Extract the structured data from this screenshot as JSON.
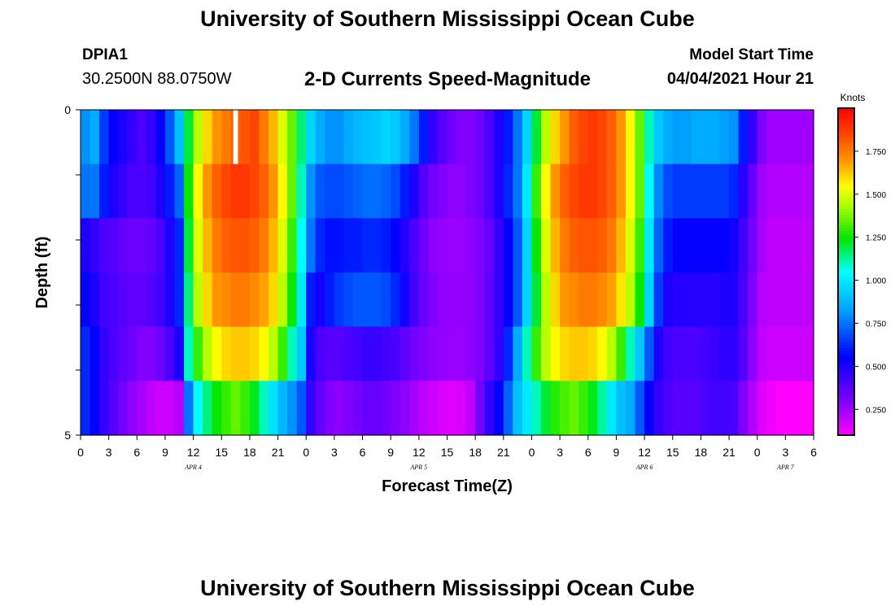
{
  "header": {
    "title": "University of Southern Mississippi Ocean Cube",
    "station_id": "DPIA1",
    "coordinates": "30.2500N  88.0750W",
    "subtitle": "2-D Currents Speed-Magnitude",
    "model_start_label": "Model Start Time",
    "model_start_value": "04/04/2021 Hour 21"
  },
  "footer": {
    "title": "University of Southern Mississippi Ocean Cube"
  },
  "chart_data": {
    "type": "heatmap",
    "title": "2-D Currents Speed-Magnitude",
    "xlabel": "Forecast Time(Z)",
    "ylabel": "Depth (ft)",
    "x_range_hours": [
      0,
      78
    ],
    "x_tick_labels": [
      "0",
      "3",
      "6",
      "9",
      "12",
      "15",
      "18",
      "21",
      "0",
      "3",
      "6",
      "9",
      "12",
      "15",
      "18",
      "21",
      "0",
      "3",
      "6",
      "9",
      "12",
      "15",
      "18",
      "21",
      "0",
      "3",
      "6"
    ],
    "date_labels": [
      {
        "label": "APR 4",
        "hour": 12
      },
      {
        "label": "APR 5",
        "hour": 36
      },
      {
        "label": "APR 6",
        "hour": 60
      },
      {
        "label": "APR 7",
        "hour": 75
      }
    ],
    "y_range": [
      0,
      5
    ],
    "y_tick_labels": [
      "0",
      "5"
    ],
    "colorbar": {
      "unit": "Knots",
      "range": [
        0.1,
        2.0
      ],
      "ticks": [
        0.25,
        0.5,
        0.75,
        1.0,
        1.25,
        1.5,
        1.75
      ],
      "tick_labels": [
        "0.250",
        "0.500",
        "0.750",
        "1.000",
        "1.250",
        "1.500",
        "1.750"
      ]
    },
    "depth_layers": [
      0,
      1,
      2,
      3,
      4,
      5
    ],
    "hourly_speed_knots": [
      [
        0.8,
        0.85,
        0.65,
        0.55,
        0.5,
        0.45,
        0.4,
        0.45,
        0.55,
        0.7,
        0.9,
        1.2,
        1.45,
        1.6,
        1.7,
        1.75,
        1.8,
        1.82,
        1.85,
        1.75,
        1.65,
        1.5,
        1.35,
        1.15,
        0.95,
        0.85,
        0.8,
        0.8,
        0.85,
        0.88,
        0.9,
        0.92,
        0.95,
        0.92,
        0.85,
        0.75,
        0.6,
        0.45,
        0.38,
        0.33,
        0.3,
        0.3,
        0.33,
        0.4,
        0.5,
        0.6,
        0.75,
        0.95,
        1.2,
        1.45,
        1.6,
        1.7,
        1.8,
        1.85,
        1.88,
        1.85,
        1.8,
        1.7,
        1.55,
        1.35,
        1.1,
        0.92,
        0.85,
        0.82,
        0.82,
        0.85,
        0.85,
        0.85,
        0.82,
        0.8,
        0.6,
        0.45,
        0.3,
        0.25,
        0.25,
        0.25,
        0.25,
        0.25
      ],
      [
        0.75,
        0.75,
        0.6,
        0.5,
        0.45,
        0.4,
        0.4,
        0.42,
        0.5,
        0.6,
        0.72,
        1.25,
        1.55,
        1.7,
        1.8,
        1.85,
        1.88,
        1.88,
        1.85,
        1.8,
        1.7,
        1.55,
        1.35,
        1.1,
        0.8,
        0.7,
        0.68,
        0.68,
        0.7,
        0.72,
        0.74,
        0.74,
        0.72,
        0.68,
        0.6,
        0.5,
        0.38,
        0.32,
        0.3,
        0.28,
        0.28,
        0.3,
        0.33,
        0.4,
        0.5,
        0.62,
        0.75,
        1.0,
        1.3,
        1.55,
        1.7,
        1.8,
        1.85,
        1.88,
        1.88,
        1.85,
        1.8,
        1.7,
        1.55,
        1.35,
        1.05,
        0.78,
        0.68,
        0.65,
        0.65,
        0.65,
        0.65,
        0.65,
        0.65,
        0.62,
        0.48,
        0.35,
        0.25,
        0.22,
        0.22,
        0.22,
        0.22,
        0.22
      ],
      [
        0.5,
        0.45,
        0.4,
        0.38,
        0.35,
        0.33,
        0.33,
        0.35,
        0.4,
        0.5,
        0.62,
        1.2,
        1.5,
        1.65,
        1.75,
        1.8,
        1.82,
        1.82,
        1.8,
        1.75,
        1.65,
        1.5,
        1.3,
        1.05,
        0.75,
        0.62,
        0.58,
        0.58,
        0.6,
        0.6,
        0.62,
        0.62,
        0.6,
        0.55,
        0.48,
        0.4,
        0.33,
        0.28,
        0.27,
        0.26,
        0.26,
        0.28,
        0.3,
        0.35,
        0.45,
        0.55,
        0.7,
        0.95,
        1.25,
        1.5,
        1.65,
        1.75,
        1.8,
        1.82,
        1.82,
        1.8,
        1.75,
        1.65,
        1.5,
        1.3,
        1.0,
        0.72,
        0.6,
        0.55,
        0.55,
        0.55,
        0.55,
        0.55,
        0.55,
        0.52,
        0.42,
        0.32,
        0.24,
        0.2,
        0.2,
        0.2,
        0.2,
        0.2
      ],
      [
        0.55,
        0.5,
        0.42,
        0.4,
        0.38,
        0.36,
        0.36,
        0.38,
        0.42,
        0.5,
        0.62,
        1.15,
        1.45,
        1.6,
        1.7,
        1.72,
        1.75,
        1.75,
        1.72,
        1.68,
        1.6,
        1.45,
        1.25,
        1.0,
        0.6,
        0.52,
        0.6,
        0.65,
        0.68,
        0.7,
        0.7,
        0.7,
        0.68,
        0.62,
        0.52,
        0.42,
        0.34,
        0.3,
        0.28,
        0.27,
        0.27,
        0.28,
        0.3,
        0.36,
        0.45,
        0.55,
        0.7,
        0.95,
        1.2,
        1.45,
        1.6,
        1.7,
        1.72,
        1.75,
        1.75,
        1.72,
        1.68,
        1.58,
        1.45,
        1.25,
        0.95,
        0.65,
        0.5,
        0.48,
        0.48,
        0.48,
        0.48,
        0.48,
        0.5,
        0.5,
        0.4,
        0.3,
        0.22,
        0.2,
        0.2,
        0.2,
        0.2,
        0.2
      ],
      [
        0.62,
        0.55,
        0.45,
        0.4,
        0.36,
        0.33,
        0.3,
        0.3,
        0.33,
        0.4,
        0.5,
        1.1,
        1.3,
        1.45,
        1.55,
        1.6,
        1.62,
        1.62,
        1.6,
        1.55,
        1.45,
        1.3,
        1.1,
        0.92,
        0.5,
        0.4,
        0.38,
        0.38,
        0.4,
        0.42,
        0.44,
        0.44,
        0.42,
        0.4,
        0.36,
        0.32,
        0.3,
        0.28,
        0.27,
        0.26,
        0.26,
        0.28,
        0.3,
        0.36,
        0.45,
        0.62,
        0.85,
        1.1,
        1.3,
        1.45,
        1.55,
        1.6,
        1.62,
        1.62,
        1.6,
        1.55,
        1.45,
        1.3,
        1.1,
        0.92,
        0.7,
        0.5,
        0.42,
        0.4,
        0.4,
        0.4,
        0.42,
        0.44,
        0.46,
        0.46,
        0.38,
        0.28,
        0.2,
        0.18,
        0.18,
        0.18,
        0.18,
        0.18
      ],
      [
        0.62,
        0.55,
        0.45,
        0.38,
        0.32,
        0.28,
        0.24,
        0.2,
        0.18,
        0.18,
        0.22,
        0.75,
        1.05,
        1.15,
        1.25,
        1.3,
        1.35,
        1.3,
        1.22,
        1.1,
        0.98,
        0.88,
        0.8,
        0.7,
        0.45,
        0.35,
        0.3,
        0.28,
        0.3,
        0.32,
        0.34,
        0.34,
        0.32,
        0.3,
        0.28,
        0.24,
        0.2,
        0.18,
        0.16,
        0.15,
        0.16,
        0.2,
        0.32,
        0.45,
        0.55,
        0.72,
        0.9,
        1.0,
        1.1,
        1.2,
        1.28,
        1.32,
        1.35,
        1.3,
        1.22,
        1.12,
        1.0,
        0.9,
        0.85,
        0.7,
        0.55,
        0.45,
        0.4,
        0.38,
        0.38,
        0.38,
        0.4,
        0.42,
        0.42,
        0.4,
        0.3,
        0.22,
        0.15,
        0.12,
        0.1,
        0.1,
        0.1,
        0.1
      ]
    ],
    "missing_cells": [
      {
        "hour": 16,
        "layer": 0
      }
    ]
  }
}
